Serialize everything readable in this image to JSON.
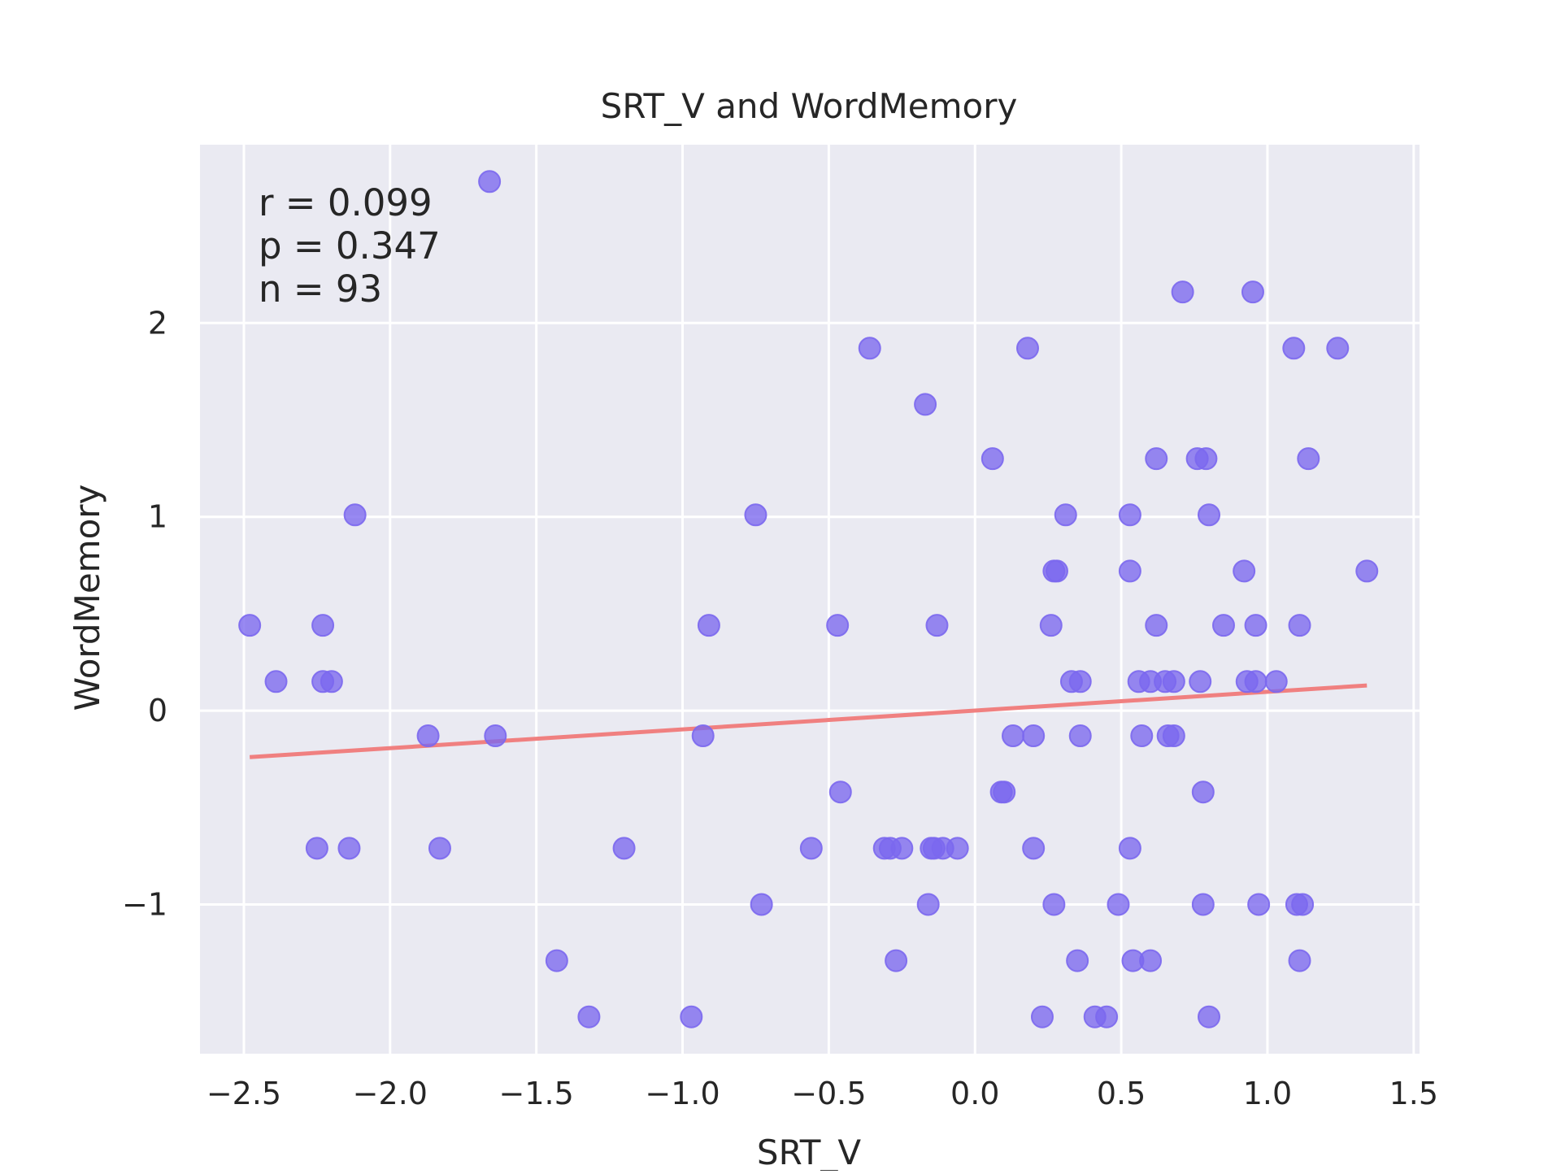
{
  "chart_data": {
    "type": "scatter",
    "title": "SRT_V and WordMemory",
    "xlabel": "SRT_V",
    "ylabel": "WordMemory",
    "xlim": [
      -2.65,
      1.52
    ],
    "ylim": [
      -1.77,
      2.92
    ],
    "xticks": [
      -2.5,
      -2.0,
      -1.5,
      -1.0,
      -0.5,
      0.0,
      0.5,
      1.0,
      1.5
    ],
    "xtick_labels": [
      "−2.5",
      "−2.0",
      "−1.5",
      "−1.0",
      "−0.5",
      "0.0",
      "0.5",
      "1.0",
      "1.5"
    ],
    "yticks": [
      -1,
      0,
      1,
      2
    ],
    "ytick_labels": [
      "−1",
      "0",
      "1",
      "2"
    ],
    "grid": true,
    "stats": {
      "r": "r = 0.099",
      "p": "p = 0.347",
      "n": "n = 93"
    },
    "regression": {
      "x": [
        -2.48,
        1.34
      ],
      "y": [
        -0.24,
        0.13
      ]
    },
    "point_color": "#7b68ee",
    "line_color": "#f08080",
    "background_color": "#eaeaf2",
    "points": [
      [
        -2.48,
        0.44
      ],
      [
        -2.39,
        0.15
      ],
      [
        -2.25,
        -0.71
      ],
      [
        -2.23,
        0.44
      ],
      [
        -2.23,
        0.15
      ],
      [
        -2.2,
        0.15
      ],
      [
        -2.14,
        -0.71
      ],
      [
        -2.12,
        1.01
      ],
      [
        -1.87,
        -0.13
      ],
      [
        -1.83,
        -0.71
      ],
      [
        -1.66,
        2.73
      ],
      [
        -1.64,
        -0.13
      ],
      [
        -1.43,
        -1.29
      ],
      [
        -1.32,
        -1.58
      ],
      [
        -1.2,
        -0.71
      ],
      [
        -0.97,
        -1.58
      ],
      [
        -0.93,
        -0.13
      ],
      [
        -0.91,
        0.44
      ],
      [
        -0.75,
        1.01
      ],
      [
        -0.73,
        -1.0
      ],
      [
        -0.56,
        -0.71
      ],
      [
        -0.47,
        0.44
      ],
      [
        -0.46,
        -0.42
      ],
      [
        -0.36,
        1.87
      ],
      [
        -0.31,
        -0.71
      ],
      [
        -0.29,
        -0.71
      ],
      [
        -0.27,
        -1.29
      ],
      [
        -0.25,
        -0.71
      ],
      [
        -0.17,
        1.58
      ],
      [
        -0.16,
        -1.0
      ],
      [
        -0.15,
        -0.71
      ],
      [
        -0.14,
        -0.71
      ],
      [
        -0.13,
        0.44
      ],
      [
        -0.11,
        -0.71
      ],
      [
        -0.06,
        -0.71
      ],
      [
        0.06,
        1.3
      ],
      [
        0.09,
        -0.42
      ],
      [
        0.1,
        -0.42
      ],
      [
        0.13,
        -0.13
      ],
      [
        0.18,
        1.87
      ],
      [
        0.2,
        -0.13
      ],
      [
        0.2,
        -0.71
      ],
      [
        0.23,
        -1.58
      ],
      [
        0.26,
        0.44
      ],
      [
        0.27,
        0.72
      ],
      [
        0.27,
        -1.0
      ],
      [
        0.28,
        0.72
      ],
      [
        0.31,
        1.01
      ],
      [
        0.33,
        0.15
      ],
      [
        0.35,
        -1.29
      ],
      [
        0.36,
        0.15
      ],
      [
        0.36,
        -0.13
      ],
      [
        0.41,
        -1.58
      ],
      [
        0.45,
        -1.58
      ],
      [
        0.49,
        -1.0
      ],
      [
        0.53,
        1.01
      ],
      [
        0.53,
        0.72
      ],
      [
        0.53,
        -0.71
      ],
      [
        0.54,
        -1.29
      ],
      [
        0.56,
        0.15
      ],
      [
        0.57,
        -0.13
      ],
      [
        0.6,
        0.15
      ],
      [
        0.6,
        -1.29
      ],
      [
        0.62,
        1.3
      ],
      [
        0.62,
        0.44
      ],
      [
        0.65,
        0.15
      ],
      [
        0.66,
        -0.13
      ],
      [
        0.68,
        -0.13
      ],
      [
        0.68,
        0.15
      ],
      [
        0.71,
        2.16
      ],
      [
        0.76,
        1.3
      ],
      [
        0.77,
        0.15
      ],
      [
        0.78,
        -0.42
      ],
      [
        0.78,
        -1.0
      ],
      [
        0.79,
        1.3
      ],
      [
        0.8,
        1.01
      ],
      [
        0.8,
        -1.58
      ],
      [
        0.85,
        0.44
      ],
      [
        0.92,
        0.72
      ],
      [
        0.93,
        0.15
      ],
      [
        0.95,
        2.16
      ],
      [
        0.96,
        0.44
      ],
      [
        0.96,
        0.15
      ],
      [
        0.97,
        -1.0
      ],
      [
        1.03,
        0.15
      ],
      [
        1.09,
        1.87
      ],
      [
        1.1,
        -1.0
      ],
      [
        1.11,
        -1.29
      ],
      [
        1.11,
        0.44
      ],
      [
        1.12,
        -1.0
      ],
      [
        1.14,
        1.3
      ],
      [
        1.24,
        1.87
      ],
      [
        1.34,
        0.72
      ]
    ]
  }
}
